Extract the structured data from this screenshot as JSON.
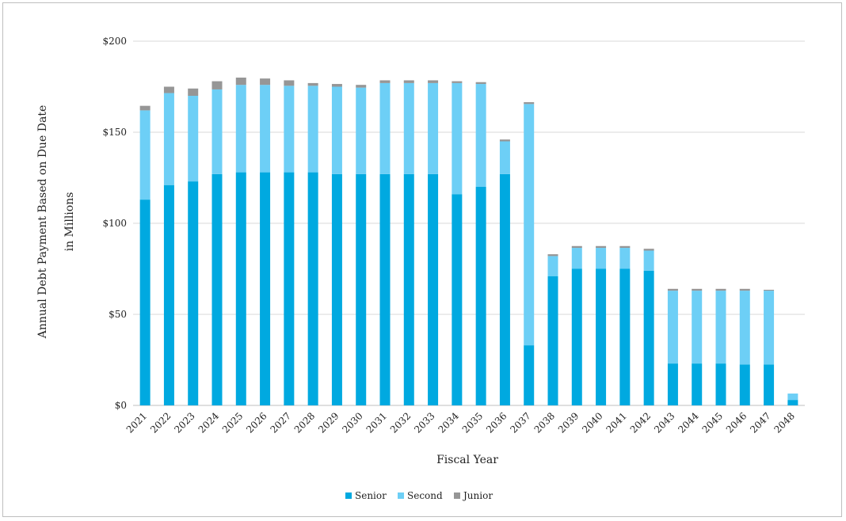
{
  "chart_data": {
    "type": "bar",
    "stacked": true,
    "title": "",
    "xlabel": "Fiscal Year",
    "ylabel_line1": "Annual Debt Payment Based on Due Date",
    "ylabel_line2": "in Millions",
    "ylim": [
      0,
      200
    ],
    "yticks": [
      "$0",
      "$50",
      "$100",
      "$150",
      "$200"
    ],
    "ytick_values": [
      0,
      50,
      100,
      150,
      200
    ],
    "grid": "horizontal",
    "legend_position": "bottom",
    "categories": [
      "2021",
      "2022",
      "2023",
      "2024",
      "2025",
      "2026",
      "2027",
      "2028",
      "2029",
      "2030",
      "2031",
      "2032",
      "2033",
      "2034",
      "2035",
      "2036",
      "2037",
      "2038",
      "2039",
      "2040",
      "2041",
      "2042",
      "2043",
      "2044",
      "2045",
      "2046",
      "2047",
      "2048"
    ],
    "series": [
      {
        "name": "Senior",
        "color": "#00a9e0",
        "values": [
          113,
          121,
          123,
          127,
          128,
          128,
          128,
          128,
          127,
          127,
          127,
          127,
          127,
          116,
          120,
          127,
          33,
          71,
          75,
          75,
          75,
          74,
          23,
          23,
          23,
          22.5,
          22.5,
          3
        ]
      },
      {
        "name": "Second",
        "color": "#6dcff6",
        "values": [
          49,
          50.5,
          47,
          46.5,
          48,
          48,
          47.5,
          47.5,
          48,
          47.5,
          50,
          50,
          50,
          61,
          56.5,
          18,
          132.5,
          11,
          11.5,
          11.5,
          11.5,
          11,
          40,
          40,
          40,
          40.5,
          40.5,
          3.5
        ]
      },
      {
        "name": "Junior",
        "color": "#969696",
        "values": [
          2.5,
          3.5,
          4,
          4.5,
          4,
          3.5,
          3,
          1.5,
          1.5,
          1.5,
          1.5,
          1.5,
          1.5,
          1,
          1,
          1,
          1,
          1,
          1,
          1,
          1,
          1,
          1,
          1,
          1,
          1,
          0.5,
          0
        ]
      }
    ]
  }
}
